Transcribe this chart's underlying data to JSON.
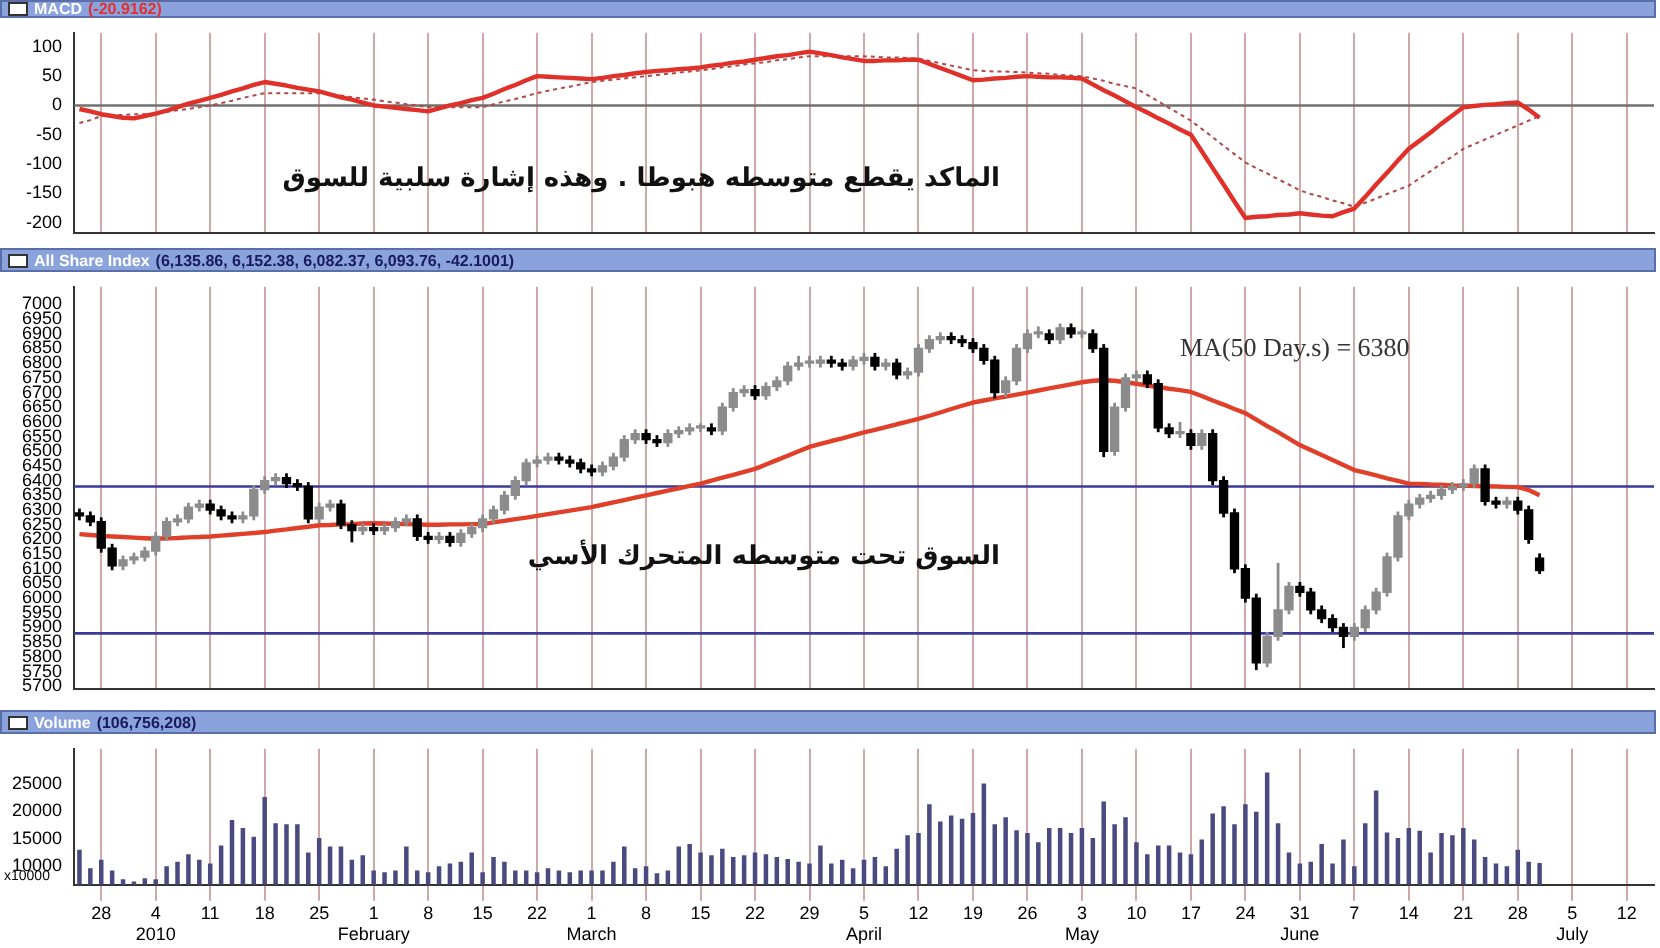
{
  "chart_data": [
    {
      "type": "line",
      "title": "MACD",
      "subtitle": "(-20.9162)",
      "tick_labels": "y",
      "grid": "x",
      "categories": [
        null,
        null,
        null,
        null,
        null,
        null,
        null,
        null,
        null,
        null,
        null,
        null,
        null,
        null,
        null,
        null,
        null,
        null,
        null,
        null,
        null,
        null,
        null,
        null,
        null,
        null,
        null,
        null,
        null,
        null,
        null,
        null,
        null,
        null,
        null,
        null,
        null,
        null,
        null,
        null,
        null,
        null,
        null,
        null,
        null,
        null,
        null,
        null,
        null,
        null,
        null,
        null,
        null,
        null,
        null,
        null,
        null,
        null,
        null,
        null,
        null,
        null,
        null,
        null,
        null,
        null,
        null,
        null,
        null,
        null,
        null,
        null,
        null,
        null,
        null,
        null,
        null,
        null,
        null,
        null,
        null,
        null,
        null,
        null,
        null,
        null,
        null,
        null,
        null,
        null,
        null,
        null,
        null,
        null,
        null,
        null,
        null,
        null,
        null,
        null,
        null,
        null,
        null,
        null,
        null,
        null,
        null,
        null,
        null,
        null,
        null,
        null,
        null,
        null,
        null,
        null,
        null,
        null,
        null,
        null,
        null,
        null,
        null,
        null,
        null,
        null,
        null,
        null,
        null,
        null,
        null,
        null,
        null,
        null,
        null,
        null,
        null,
        null,
        null,
        null,
        null,
        null,
        null,
        null,
        null
      ],
      "series": [
        {
          "color": "#e0302a",
          "values": [
            -6,
            -10,
            -15,
            -18,
            -21,
            -22,
            -18,
            -14,
            -9,
            -3,
            3,
            8,
            13,
            18,
            24,
            29,
            35,
            40,
            37,
            34,
            30,
            27,
            24,
            19,
            14,
            10,
            5,
            0,
            -2,
            -4,
            -6,
            -8,
            -10,
            -5,
            0,
            4,
            9,
            13,
            20,
            28,
            35,
            43,
            50,
            49,
            48,
            47,
            46,
            45,
            47,
            50,
            52,
            55,
            57,
            59,
            60,
            62,
            63,
            65,
            68,
            70,
            73,
            75,
            78,
            81,
            84,
            86,
            89,
            92,
            89,
            86,
            82,
            79,
            76,
            76,
            77,
            77,
            78,
            78,
            71,
            64,
            57,
            50,
            43,
            44,
            46,
            47,
            49,
            50,
            49,
            48,
            48,
            47,
            46,
            36,
            26,
            17,
            7,
            -3,
            -12,
            -22,
            -31,
            -41,
            -50,
            -78,
            -107,
            -135,
            -164,
            -192,
            -190,
            -189,
            -187,
            -186,
            -184,
            -186,
            -188,
            -189,
            -182,
            -176,
            -156,
            -135,
            -115,
            -94,
            -74,
            -60,
            -46,
            -31,
            -17,
            -3,
            -1,
            1,
            2,
            4,
            5,
            -7,
            -21,
            null,
            null,
            null,
            null,
            null,
            null,
            null,
            null,
            null,
            null
          ]
        },
        {
          "color": "#b04848",
          "line_style": "dotted",
          "values": [
            -30,
            -25,
            -18,
            -17,
            -16,
            -15,
            -15,
            -14,
            -11,
            -8,
            -6,
            -3,
            0,
            4,
            8,
            13,
            17,
            21,
            21,
            21,
            21,
            21,
            21,
            19,
            17,
            14,
            12,
            10,
            7,
            5,
            2,
            0,
            -3,
            -3,
            -3,
            -3,
            -3,
            -3,
            2,
            7,
            11,
            16,
            21,
            25,
            29,
            32,
            36,
            40,
            42,
            44,
            46,
            48,
            50,
            52,
            54,
            56,
            58,
            60,
            62,
            65,
            67,
            70,
            72,
            74,
            77,
            79,
            82,
            84,
            84,
            84,
            84,
            84,
            84,
            83,
            82,
            82,
            81,
            80,
            76,
            72,
            68,
            64,
            60,
            59,
            58,
            58,
            57,
            56,
            55,
            54,
            52,
            51,
            50,
            46,
            42,
            37,
            33,
            29,
            18,
            7,
            -4,
            -15,
            -26,
            -40,
            -54,
            -69,
            -83,
            -97,
            -107,
            -116,
            -126,
            -135,
            -145,
            -151,
            -156,
            -162,
            -167,
            -173,
            -166,
            -159,
            -151,
            -144,
            -137,
            -124,
            -112,
            -99,
            -87,
            -74,
            -66,
            -58,
            -50,
            -42,
            -34,
            -26,
            -18,
            null,
            null,
            null,
            null,
            null,
            null,
            null,
            null,
            null,
            null
          ]
        }
      ],
      "ylim": [
        -218,
        124
      ],
      "yticks": [
        -200,
        -150,
        -100,
        -50,
        0,
        50,
        100
      ],
      "ref_lines": [
        {
          "axis": "y",
          "value": 0,
          "color": "#707070"
        }
      ],
      "annotations": [
        "الماكد يقطع متوسطه هبوطا . وهذه إشارة سلبية للسوق"
      ]
    },
    {
      "type": "candlestick",
      "title": "All Share Index",
      "subtitle": "(6,135.86, 6,152.38, 6,082.37, 6,093.76, -42.1001)",
      "tick_labels": "y",
      "grid": "x",
      "colors": [
        "#000000",
        "#000000",
        "#000000",
        "#000000",
        "#8c8c8c",
        "#8c8c8c",
        "#8c8c8c",
        "#8c8c8c",
        "#8c8c8c",
        "#8c8c8c",
        "#8c8c8c",
        "#8c8c8c",
        "#000000",
        "#000000",
        "#000000",
        "#8c8c8c",
        "#8c8c8c",
        "#8c8c8c",
        "#8c8c8c",
        "#000000",
        "#000000",
        "#000000",
        "#8c8c8c",
        "#8c8c8c",
        "#000000",
        "#000000",
        "#8c8c8c",
        "#000000",
        "#8c8c8c",
        "#8c8c8c",
        "#8c8c8c",
        "#000000",
        "#000000",
        "#8c8c8c",
        "#000000",
        "#8c8c8c",
        "#8c8c8c",
        "#8c8c8c",
        "#8c8c8c",
        "#8c8c8c",
        "#8c8c8c",
        "#8c8c8c",
        "#8c8c8c",
        "#8c8c8c",
        "#000000",
        "#000000",
        "#000000",
        "#000000",
        "#8c8c8c",
        "#8c8c8c",
        "#8c8c8c",
        "#8c8c8c",
        "#000000",
        "#000000",
        "#8c8c8c",
        "#8c8c8c",
        "#8c8c8c",
        "#8c8c8c",
        "#000000",
        "#8c8c8c",
        "#8c8c8c",
        "#8c8c8c",
        "#000000",
        "#8c8c8c",
        "#8c8c8c",
        "#8c8c8c",
        "#8c8c8c",
        "#8c8c8c",
        "#8c8c8c",
        "#000000",
        "#000000",
        "#8c8c8c",
        "#8c8c8c",
        "#000000",
        "#8c8c8c",
        "#000000",
        "#8c8c8c",
        "#8c8c8c",
        "#8c8c8c",
        "#8c8c8c",
        "#000000",
        "#000000",
        "#000000",
        "#000000",
        "#000000",
        "#8c8c8c",
        "#8c8c8c",
        "#8c8c8c",
        "#8c8c8c",
        "#000000",
        "#8c8c8c",
        "#000000",
        "#8c8c8c",
        "#000000",
        "#000000",
        "#8c8c8c",
        "#8c8c8c",
        "#8c8c8c",
        "#000000",
        "#000000",
        "#000000",
        "#8c8c8c",
        "#000000",
        "#8c8c8c",
        "#000000",
        "#000000",
        "#000000",
        "#000000",
        "#000000",
        "#8c8c8c",
        "#8c8c8c",
        "#8c8c8c",
        "#000000",
        "#000000",
        "#000000",
        "#000000",
        "#000000",
        "#8c8c8c",
        "#8c8c8c",
        "#8c8c8c",
        "#8c8c8c",
        "#8c8c8c",
        "#8c8c8c",
        "#8c8c8c",
        "#8c8c8c",
        "#8c8c8c",
        "#8c8c8c",
        "#8c8c8c",
        "#8c8c8c",
        "#000000",
        "#000000",
        "#8c8c8c",
        "#000000",
        "#000000",
        "#000000",
        null,
        null,
        null,
        null,
        null,
        null,
        null,
        null,
        null,
        null
      ],
      "categories": [
        null,
        null,
        null,
        null,
        null,
        null,
        null,
        null,
        null,
        null,
        null,
        null,
        null,
        null,
        null,
        null,
        null,
        null,
        null,
        null,
        null,
        null,
        null,
        null,
        null,
        null,
        null,
        null,
        null,
        null,
        null,
        null,
        null,
        null,
        null,
        null,
        null,
        null,
        null,
        null,
        null,
        null,
        null,
        null,
        null,
        null,
        null,
        null,
        null,
        null,
        null,
        null,
        null,
        null,
        null,
        null,
        null,
        null,
        null,
        null,
        null,
        null,
        null,
        null,
        null,
        null,
        null,
        null,
        null,
        null,
        null,
        null,
        null,
        null,
        null,
        null,
        null,
        null,
        null,
        null,
        null,
        null,
        null,
        null,
        null,
        null,
        null,
        null,
        null,
        null,
        null,
        null,
        null,
        null,
        null,
        null,
        null,
        null,
        null,
        null,
        null,
        null,
        null,
        null,
        null,
        null,
        null,
        null,
        null,
        null,
        null,
        null,
        null,
        null,
        null,
        null,
        null,
        null,
        null,
        null,
        null,
        null,
        null,
        null,
        null,
        null,
        null,
        null,
        null,
        null,
        null,
        null,
        null,
        null,
        null,
        null,
        null,
        null,
        null,
        null,
        null,
        null,
        null,
        null,
        null
      ],
      "ohlc": [
        [
          6290,
          6305,
          6265,
          6280
        ],
        [
          6280,
          6295,
          6245,
          6260
        ],
        [
          6260,
          6275,
          6155,
          6170
        ],
        [
          6170,
          6185,
          6095,
          6110
        ],
        [
          6110,
          6145,
          6095,
          6130
        ],
        [
          6130,
          6155,
          6115,
          6140
        ],
        [
          6140,
          6175,
          6125,
          6160
        ],
        [
          6160,
          6225,
          6145,
          6210
        ],
        [
          6210,
          6275,
          6195,
          6260
        ],
        [
          6260,
          6285,
          6245,
          6270
        ],
        [
          6270,
          6325,
          6255,
          6310
        ],
        [
          6310,
          6335,
          6295,
          6320
        ],
        [
          6320,
          6335,
          6285,
          6300
        ],
        [
          6300,
          6315,
          6265,
          6280
        ],
        [
          6280,
          6295,
          6255,
          6270
        ],
        [
          6270,
          6295,
          6255,
          6280
        ],
        [
          6280,
          6385,
          6265,
          6370
        ],
        [
          6370,
          6415,
          6355,
          6400
        ],
        [
          6400,
          6425,
          6385,
          6410
        ],
        [
          6410,
          6425,
          6375,
          6390
        ],
        [
          6390,
          6405,
          6365,
          6380
        ],
        [
          6380,
          6395,
          6255,
          6270
        ],
        [
          6270,
          6325,
          6255,
          6310
        ],
        [
          6310,
          6335,
          6295,
          6320
        ],
        [
          6320,
          6335,
          6235,
          6250
        ],
        [
          6250,
          6265,
          6190,
          6230
        ],
        [
          6230,
          6255,
          6215,
          6240
        ],
        [
          6240,
          6255,
          6215,
          6230
        ],
        [
          6230,
          6255,
          6215,
          6240
        ],
        [
          6240,
          6275,
          6225,
          6260
        ],
        [
          6260,
          6285,
          6245,
          6270
        ],
        [
          6270,
          6285,
          6195,
          6210
        ],
        [
          6210,
          6225,
          6185,
          6200
        ],
        [
          6200,
          6225,
          6185,
          6210
        ],
        [
          6210,
          6225,
          6175,
          6190
        ],
        [
          6190,
          6235,
          6175,
          6220
        ],
        [
          6220,
          6255,
          6205,
          6240
        ],
        [
          6240,
          6285,
          6225,
          6270
        ],
        [
          6270,
          6315,
          6255,
          6300
        ],
        [
          6300,
          6365,
          6285,
          6350
        ],
        [
          6350,
          6415,
          6335,
          6400
        ],
        [
          6400,
          6475,
          6385,
          6460
        ],
        [
          6460,
          6485,
          6445,
          6470
        ],
        [
          6470,
          6495,
          6455,
          6480
        ],
        [
          6480,
          6495,
          6455,
          6470
        ],
        [
          6470,
          6485,
          6445,
          6460
        ],
        [
          6460,
          6475,
          6425,
          6440
        ],
        [
          6440,
          6455,
          6415,
          6430
        ],
        [
          6430,
          6465,
          6415,
          6450
        ],
        [
          6450,
          6495,
          6435,
          6480
        ],
        [
          6480,
          6555,
          6465,
          6540
        ],
        [
          6540,
          6575,
          6525,
          6560
        ],
        [
          6560,
          6575,
          6525,
          6540
        ],
        [
          6540,
          6555,
          6515,
          6530
        ],
        [
          6530,
          6575,
          6515,
          6560
        ],
        [
          6560,
          6585,
          6545,
          6570
        ],
        [
          6570,
          6595,
          6555,
          6580
        ],
        [
          6580,
          6595,
          6565,
          6580
        ],
        [
          6580,
          6595,
          6555,
          6570
        ],
        [
          6570,
          6665,
          6555,
          6650
        ],
        [
          6650,
          6715,
          6635,
          6700
        ],
        [
          6700,
          6725,
          6685,
          6710
        ],
        [
          6710,
          6725,
          6675,
          6690
        ],
        [
          6690,
          6735,
          6675,
          6720
        ],
        [
          6720,
          6755,
          6705,
          6740
        ],
        [
          6740,
          6805,
          6725,
          6790
        ],
        [
          6790,
          6825,
          6775,
          6800
        ],
        [
          6800,
          6825,
          6785,
          6800
        ],
        [
          6800,
          6825,
          6785,
          6810
        ],
        [
          6810,
          6825,
          6785,
          6800
        ],
        [
          6800,
          6815,
          6775,
          6790
        ],
        [
          6790,
          6825,
          6775,
          6810
        ],
        [
          6810,
          6835,
          6795,
          6820
        ],
        [
          6820,
          6835,
          6775,
          6790
        ],
        [
          6790,
          6815,
          6775,
          6800
        ],
        [
          6800,
          6815,
          6745,
          6760
        ],
        [
          6760,
          6785,
          6745,
          6770
        ],
        [
          6770,
          6865,
          6755,
          6850
        ],
        [
          6850,
          6895,
          6835,
          6880
        ],
        [
          6880,
          6905,
          6865,
          6890
        ],
        [
          6890,
          6905,
          6865,
          6880
        ],
        [
          6880,
          6895,
          6855,
          6870
        ],
        [
          6870,
          6885,
          6835,
          6850
        ],
        [
          6850,
          6865,
          6795,
          6810
        ],
        [
          6810,
          6825,
          6680,
          6700
        ],
        [
          6700,
          6755,
          6685,
          6740
        ],
        [
          6740,
          6865,
          6725,
          6850
        ],
        [
          6850,
          6915,
          6835,
          6900
        ],
        [
          6900,
          6925,
          6885,
          6900
        ],
        [
          6900,
          6915,
          6865,
          6880
        ],
        [
          6880,
          6935,
          6865,
          6920
        ],
        [
          6920,
          6935,
          6885,
          6900
        ],
        [
          6900,
          6915,
          6885,
          6900
        ],
        [
          6900,
          6915,
          6835,
          6850
        ],
        [
          6850,
          6865,
          6480,
          6500
        ],
        [
          6500,
          6665,
          6485,
          6650
        ],
        [
          6650,
          6765,
          6635,
          6750
        ],
        [
          6750,
          6775,
          6735,
          6760
        ],
        [
          6760,
          6775,
          6715,
          6730
        ],
        [
          6730,
          6745,
          6565,
          6580
        ],
        [
          6580,
          6595,
          6545,
          6560
        ],
        [
          6560,
          6600,
          6545,
          6560
        ],
        [
          6560,
          6575,
          6505,
          6520
        ],
        [
          6520,
          6575,
          6505,
          6560
        ],
        [
          6560,
          6575,
          6385,
          6400
        ],
        [
          6400,
          6415,
          6275,
          6290
        ],
        [
          6290,
          6305,
          6085,
          6100
        ],
        [
          6100,
          6115,
          5985,
          6000
        ],
        [
          6000,
          6015,
          5755,
          5780
        ],
        [
          5780,
          5885,
          5765,
          5870
        ],
        [
          5870,
          6120,
          5855,
          5960
        ],
        [
          5960,
          6055,
          5945,
          6040
        ],
        [
          6040,
          6055,
          6005,
          6020
        ],
        [
          6020,
          6035,
          5945,
          5960
        ],
        [
          5960,
          5975,
          5915,
          5930
        ],
        [
          5930,
          5945,
          5885,
          5900
        ],
        [
          5900,
          5915,
          5830,
          5870
        ],
        [
          5870,
          5915,
          5855,
          5900
        ],
        [
          5900,
          5975,
          5885,
          5960
        ],
        [
          5960,
          6035,
          5945,
          6020
        ],
        [
          6020,
          6155,
          6005,
          6140
        ],
        [
          6140,
          6295,
          6125,
          6280
        ],
        [
          6280,
          6335,
          6265,
          6320
        ],
        [
          6320,
          6355,
          6305,
          6340
        ],
        [
          6340,
          6365,
          6325,
          6350
        ],
        [
          6350,
          6385,
          6335,
          6370
        ],
        [
          6370,
          6395,
          6355,
          6380
        ],
        [
          6380,
          6405,
          6365,
          6390
        ],
        [
          6390,
          6455,
          6375,
          6440
        ],
        [
          6440,
          6455,
          6315,
          6330
        ],
        [
          6330,
          6345,
          6305,
          6320
        ],
        [
          6320,
          6345,
          6305,
          6330
        ],
        [
          6330,
          6345,
          6285,
          6300
        ],
        [
          6300,
          6315,
          6185,
          6200
        ],
        [
          6135.86,
          6152.38,
          6082.37,
          6093.76
        ],
        null,
        null,
        null,
        null,
        null,
        null,
        null,
        null,
        null,
        null
      ],
      "series": [
        {
          "type": "line",
          "color": "#e0402a",
          "values": [
            6218,
            6215,
            6212,
            6210,
            6208,
            6206,
            6204,
            6202,
            6204,
            6205,
            6207,
            6208,
            6210,
            6213,
            6216,
            6219,
            6222,
            6225,
            6230,
            6234,
            6239,
            6243,
            6248,
            6249,
            6251,
            6252,
            6254,
            6255,
            6254,
            6253,
            6252,
            6251,
            6250,
            6250,
            6251,
            6251,
            6252,
            6252,
            6258,
            6263,
            6269,
            6274,
            6280,
            6286,
            6292,
            6298,
            6304,
            6310,
            6318,
            6326,
            6334,
            6342,
            6350,
            6358,
            6366,
            6374,
            6382,
            6390,
            6400,
            6410,
            6420,
            6430,
            6440,
            6455,
            6470,
            6485,
            6500,
            6515,
            6525,
            6535,
            6544,
            6554,
            6564,
            6573,
            6582,
            6592,
            6601,
            6610,
            6621,
            6632,
            6644,
            6655,
            6666,
            6673,
            6680,
            6686,
            6693,
            6700,
            6707,
            6714,
            6721,
            6728,
            6735,
            6740,
            6742,
            6740,
            6735,
            6730,
            6724,
            6719,
            6713,
            6708,
            6702,
            6688,
            6673,
            6659,
            6644,
            6630,
            6608,
            6586,
            6565,
            6543,
            6521,
            6504,
            6487,
            6470,
            6453,
            6436,
            6427,
            6418,
            6408,
            6399,
            6390,
            6389,
            6387,
            6386,
            6384,
            6383,
            6382,
            6381,
            6380,
            6379,
            6378,
            6368,
            6350,
            null,
            null,
            null,
            null,
            null,
            null,
            null,
            null,
            null,
            null
          ]
        }
      ],
      "ylim": [
        5690,
        7060
      ],
      "yticks": [
        5700,
        5750,
        5800,
        5850,
        5900,
        5950,
        6000,
        6050,
        6100,
        6150,
        6200,
        6250,
        6300,
        6350,
        6400,
        6450,
        6500,
        6550,
        6600,
        6650,
        6700,
        6750,
        6800,
        6850,
        6900,
        6950,
        7000
      ],
      "ref_lines": [
        {
          "axis": "y",
          "value": 6380,
          "color": "#3a3a9a"
        },
        {
          "axis": "y",
          "value": 5880,
          "color": "#3a3a9a"
        }
      ],
      "annotations": [
        "MA(50 Day.s) = 6380",
        "السوق تحت متوسطه المتحرك الأسي"
      ]
    },
    {
      "type": "bar",
      "title": "Volume",
      "subtitle": "(106,756,208)",
      "ylabel": "x10000",
      "grid": "x",
      "color": "#4a4a80",
      "categories": [
        null,
        null,
        "28",
        null,
        null,
        null,
        null,
        "4\n2010",
        null,
        null,
        null,
        null,
        "11",
        null,
        null,
        null,
        null,
        "18",
        null,
        null,
        null,
        null,
        "25",
        null,
        null,
        null,
        null,
        "1\nFebruary",
        null,
        null,
        null,
        null,
        "8",
        null,
        null,
        null,
        null,
        "15",
        null,
        null,
        null,
        null,
        "22",
        null,
        null,
        null,
        null,
        "1\nMarch",
        null,
        null,
        null,
        null,
        "8",
        null,
        null,
        null,
        null,
        "15",
        null,
        null,
        null,
        null,
        "22",
        null,
        null,
        null,
        null,
        "29",
        null,
        null,
        null,
        null,
        "5\nApril",
        null,
        null,
        null,
        null,
        "12",
        null,
        null,
        null,
        null,
        "19",
        null,
        null,
        null,
        null,
        "26",
        null,
        null,
        null,
        null,
        "3\nMay",
        null,
        null,
        null,
        null,
        "10",
        null,
        null,
        null,
        null,
        "17",
        null,
        null,
        null,
        null,
        "24",
        null,
        null,
        null,
        null,
        "31\nJune",
        null,
        null,
        null,
        null,
        "7",
        null,
        null,
        null,
        null,
        "14",
        null,
        null,
        null,
        null,
        "21",
        null,
        null,
        null,
        null,
        "28",
        null,
        null,
        null,
        null,
        "5\nJuly",
        null,
        null,
        null,
        null,
        "12",
        null,
        null
      ],
      "values": [
        12800,
        9400,
        11000,
        9000,
        7400,
        7000,
        7600,
        7400,
        9800,
        10600,
        12000,
        11000,
        10300,
        13600,
        18300,
        16800,
        15200,
        22500,
        17700,
        17500,
        17500,
        12300,
        15000,
        13400,
        13400,
        11000,
        11800,
        9000,
        8700,
        9000,
        13400,
        9000,
        8700,
        9800,
        10300,
        10600,
        12300,
        8700,
        11500,
        10600,
        9000,
        9000,
        8700,
        9400,
        9000,
        8700,
        9000,
        9000,
        9000,
        10600,
        13400,
        9400,
        9800,
        8500,
        9000,
        13400,
        13900,
        12300,
        11800,
        13000,
        11500,
        11800,
        12300,
        12000,
        11500,
        11100,
        10600,
        10300,
        13600,
        10300,
        11000,
        9400,
        11000,
        11500,
        9800,
        13000,
        15500,
        15900,
        21200,
        18000,
        19100,
        18500,
        19600,
        25000,
        17500,
        18800,
        16400,
        15900,
        14200,
        16800,
        16800,
        15900,
        16800,
        15000,
        21700,
        17500,
        18800,
        14200,
        12000,
        13600,
        13600,
        12300,
        12000,
        14700,
        19500,
        20800,
        17500,
        21200,
        19800,
        27000,
        17700,
        12300,
        10300,
        10600,
        13900,
        10300,
        14700,
        9800,
        17700,
        23700,
        16000,
        15000,
        16800,
        16300,
        12300,
        15900,
        15500,
        16800,
        14700,
        11500,
        10300,
        9800,
        12800,
        10600,
        10400,
        null,
        null,
        null,
        null,
        null,
        null,
        null,
        null,
        null,
        null
      ],
      "ylim": [
        6500,
        31500
      ],
      "yticks": [
        10000,
        15000,
        20000,
        25000
      ]
    }
  ]
}
